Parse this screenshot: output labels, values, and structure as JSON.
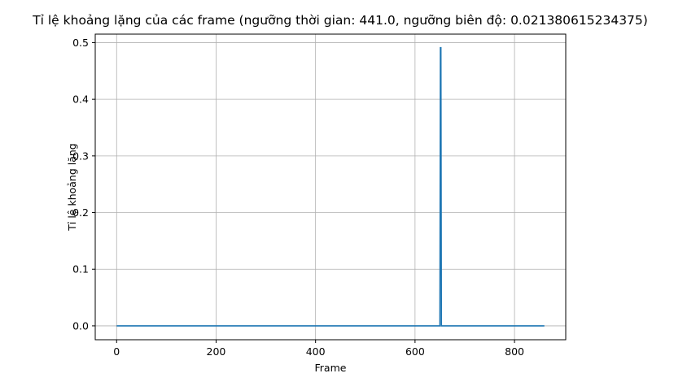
{
  "chart_data": {
    "type": "line",
    "title": "Tỉ lệ khoảng lặng của các frame (ngưỡng thời gian: 441.0, ngưỡng biên độ: 0.021380615234375)",
    "xlabel": "Frame",
    "ylabel": "Tỉ lệ khoảng lặng",
    "xlim": [
      -43,
      903
    ],
    "ylim": [
      -0.0245,
      0.515
    ],
    "xticks": [
      0,
      200,
      400,
      600,
      800
    ],
    "xtick_labels": [
      "0",
      "200",
      "400",
      "600",
      "800"
    ],
    "yticks": [
      0.0,
      0.1,
      0.2,
      0.3,
      0.4,
      0.5
    ],
    "ytick_labels": [
      "0.0",
      "0.1",
      "0.2",
      "0.3",
      "0.4",
      "0.5"
    ],
    "grid": true,
    "series": [
      {
        "color": "#1f77b4",
        "x": [
          0,
          650,
          651,
          652,
          653,
          860
        ],
        "y": [
          0,
          0,
          0.491,
          0.491,
          0,
          0
        ]
      }
    ]
  }
}
